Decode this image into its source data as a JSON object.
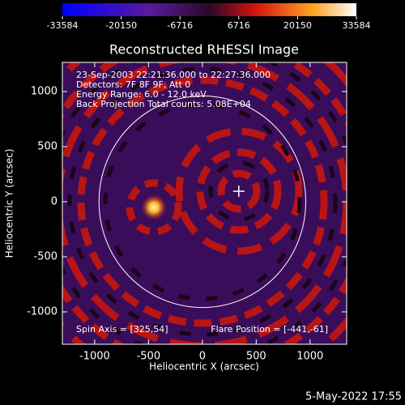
{
  "chart_data": {
    "type": "image",
    "title": "Reconstructed RHESSI Image",
    "xlabel": "Heliocentric X (arcsec)",
    "ylabel": "Heliocentric Y (arcsec)",
    "xlim": [
      -1300,
      1340
    ],
    "ylim": [
      -1294,
      1265
    ],
    "xticks": [
      -1000,
      -500,
      0,
      500,
      1000
    ],
    "yticks": [
      -1000,
      -500,
      0,
      500,
      1000
    ],
    "colorbar": {
      "lim": [
        -33584,
        33584
      ],
      "ticks": [
        -33584,
        -20150,
        -6716,
        6716,
        20150,
        33584
      ]
    },
    "annotations": [
      "23-Sep-2003 22:21:36.000 to 22:27:36.000",
      "Detectors: 7F 8F 9F, Att 0",
      "Energy Range: 6.0 - 12.0 keV",
      "Back Projection     Total counts: 5.08E+04"
    ],
    "spin_axis_label": "Spin Axis = [325,54]",
    "flare_position_label": "Flare Position = [-441,-61]",
    "limb_radius": 960,
    "marker": {
      "x": 338,
      "y": 95
    },
    "date": "5-May-2022 17:55"
  }
}
